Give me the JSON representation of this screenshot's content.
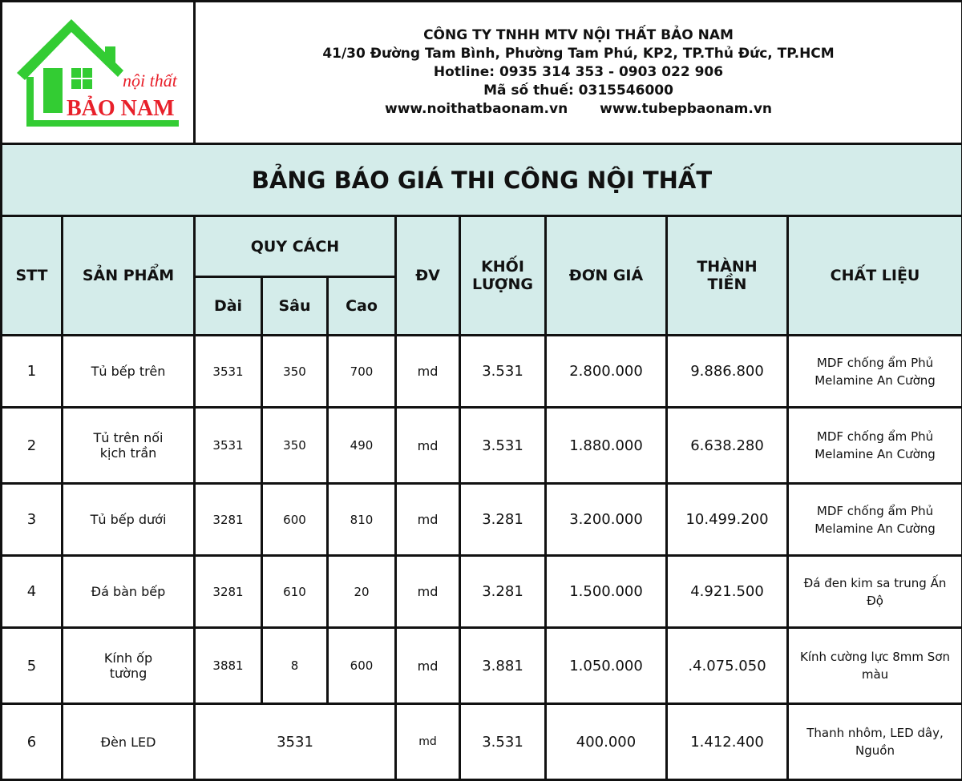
{
  "logo": {
    "script": "nội thất",
    "brand": "BẢO NAM",
    "green": "#33cc33",
    "red": "#e8202a"
  },
  "company": {
    "name": "CÔNG TY TNHH MTV NỘI THẤT BẢO NAM",
    "address": "41/30 Đường Tam Bình, Phường Tam Phú, KP2, TP.Thủ Đức, TP.HCM",
    "hotline": "Hotline: 0935 314 353 - 0903 022 906",
    "tax": "Mã số thuế: 0315546000",
    "web1": "www.noithatbaonam.vn",
    "web2": "www.tubepbaonam.vn"
  },
  "title": "BẢNG BÁO GIÁ THI CÔNG NỘI THẤT",
  "header": {
    "stt": "STT",
    "product": "SẢN PHẨM",
    "spec": "QUY CÁCH",
    "length": "Dài",
    "depth": "Sâu",
    "height": "Cao",
    "unit": "ĐV",
    "qty": "KHỐI LƯỢNG",
    "price": "ĐƠN GIÁ",
    "total": "THÀNH TIỀN",
    "material": "CHẤT LIỆU"
  },
  "header_bg": "#d4ecea",
  "rows": [
    {
      "stt": "1",
      "product": "Tủ bếp trên",
      "length": "3531",
      "depth": "350",
      "height": "700",
      "unit": "md",
      "qty": "3.531",
      "price": "2.800.000",
      "total": "9.886.800",
      "material": "MDF chống ẩm Phủ Melamine An Cường"
    },
    {
      "stt": "2",
      "product": "Tủ trên nối kịch trần",
      "length": "3531",
      "depth": "350",
      "height": "490",
      "unit": "md",
      "qty": "3.531",
      "price": "1.880.000",
      "total": "6.638.280",
      "material": "MDF chống ẩm Phủ Melamine An Cường"
    },
    {
      "stt": "3",
      "product": "Tủ bếp dưới",
      "length": "3281",
      "depth": "600",
      "height": "810",
      "unit": "md",
      "qty": "3.281",
      "price": "3.200.000",
      "total": "10.499.200",
      "material": "MDF chống ẩm Phủ Melamine An Cường"
    },
    {
      "stt": "4",
      "product": "Đá bàn bếp",
      "length": "3281",
      "depth": "610",
      "height": "20",
      "unit": "md",
      "qty": "3.281",
      "price": "1.500.000",
      "total": "4.921.500",
      "material": "Đá đen kim sa trung Ấn Độ"
    },
    {
      "stt": "5",
      "product": "Kính ốp tường",
      "length": "3881",
      "depth": "8",
      "height": "600",
      "unit": "md",
      "qty": "3.881",
      "price": "1.050.000",
      "total": ".4.075.050",
      "material": "Kính cường lực 8mm Sơn màu"
    }
  ],
  "row6": {
    "stt": "6",
    "product": "Đèn LED",
    "spec": "3531",
    "unit": "md",
    "qty": "3.531",
    "price": "400.000",
    "total": "1.412.400",
    "material": "Thanh nhôm, LED dây, Nguồn"
  }
}
